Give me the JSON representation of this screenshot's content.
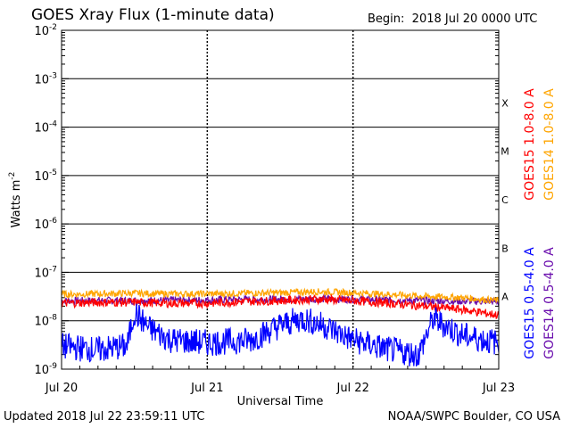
{
  "header": {
    "title": "GOES Xray Flux (1-minute data)",
    "begin_label": "Begin:",
    "begin_value": "2018 Jul 20 0000 UTC"
  },
  "footer": {
    "updated": "Updated 2018 Jul 22 23:59:11 UTC",
    "credit": "NOAA/SWPC Boulder, CO USA"
  },
  "colors": {
    "goes15_long": "#ff0000",
    "goes14_long": "#ffa500",
    "goes15_short": "#0000ff",
    "goes14_short": "#6a0dad"
  },
  "chart_data": {
    "type": "line",
    "title": "GOES Xray Flux (1-minute data)",
    "xlabel": "Universal Time",
    "ylabel": "Watts m-2",
    "y_scale": "log",
    "ylim": [
      1e-09,
      0.01
    ],
    "xlim": [
      0,
      3
    ],
    "x_ticks": [
      {
        "value": 0,
        "label": "Jul 20"
      },
      {
        "value": 1,
        "label": "Jul 21"
      },
      {
        "value": 2,
        "label": "Jul 22"
      },
      {
        "value": 3,
        "label": "Jul 23"
      }
    ],
    "y_ticks": [
      {
        "exp": -9,
        "base": "10",
        "sup": "-9"
      },
      {
        "exp": -8,
        "base": "10",
        "sup": "-8"
      },
      {
        "exp": -7,
        "base": "10",
        "sup": "-7"
      },
      {
        "exp": -6,
        "base": "10",
        "sup": "-6"
      },
      {
        "exp": -5,
        "base": "10",
        "sup": "-5"
      },
      {
        "exp": -4,
        "base": "10",
        "sup": "-4"
      },
      {
        "exp": -3,
        "base": "10",
        "sup": "-3"
      },
      {
        "exp": -2,
        "base": "10",
        "sup": "-2"
      }
    ],
    "flare_classes": [
      {
        "label": "A",
        "exp": -7.5
      },
      {
        "label": "B",
        "exp": -6.5
      },
      {
        "label": "C",
        "exp": -5.5
      },
      {
        "label": "M",
        "exp": -4.5
      },
      {
        "label": "X",
        "exp": -3.5
      }
    ],
    "series": [
      {
        "name": "GOES15 1.0-8.0 A",
        "color": "#ff0000",
        "x": [
          0,
          0.25,
          0.5,
          0.75,
          1,
          1.25,
          1.5,
          1.75,
          2,
          2.25,
          2.5,
          2.75,
          3
        ],
        "values": [
          2.3e-08,
          2.4e-08,
          2.4e-08,
          2.3e-08,
          2.3e-08,
          2.5e-08,
          2.6e-08,
          2.8e-08,
          2.6e-08,
          2.3e-08,
          2e-08,
          1.7e-08,
          1.3e-08
        ]
      },
      {
        "name": "GOES14 1.0-8.0 A",
        "color": "#ffa500",
        "x": [
          0,
          0.25,
          0.5,
          0.75,
          1,
          1.25,
          1.5,
          1.75,
          2,
          2.25,
          2.5,
          2.75,
          3
        ],
        "values": [
          3.5e-08,
          3.6e-08,
          3.7e-08,
          3.6e-08,
          3.6e-08,
          3.7e-08,
          3.8e-08,
          4e-08,
          3.8e-08,
          3.5e-08,
          3.2e-08,
          3e-08,
          2.6e-08
        ]
      },
      {
        "name": "GOES15 0.5-4.0 A",
        "color": "#0000ff",
        "x": [
          0,
          0.25,
          0.45,
          0.5,
          0.6,
          0.75,
          1,
          1.3,
          1.5,
          1.65,
          1.8,
          2,
          2.25,
          2.45,
          2.55,
          2.75,
          3
        ],
        "values": [
          3e-09,
          2.5e-09,
          3e-09,
          1.5e-08,
          7e-09,
          4e-09,
          3.5e-09,
          4e-09,
          8e-09,
          1.1e-08,
          8e-09,
          4e-09,
          2.5e-09,
          2e-09,
          1.1e-08,
          5e-09,
          3.5e-09
        ]
      },
      {
        "name": "GOES14 0.5-4.0 A",
        "color": "#6a0dad",
        "x": [
          0,
          0.5,
          1,
          1.5,
          2,
          2.5,
          3
        ],
        "values": [
          2.6e-08,
          2.6e-08,
          2.7e-08,
          2.8e-08,
          2.8e-08,
          2.6e-08,
          2.5e-08
        ]
      }
    ]
  }
}
